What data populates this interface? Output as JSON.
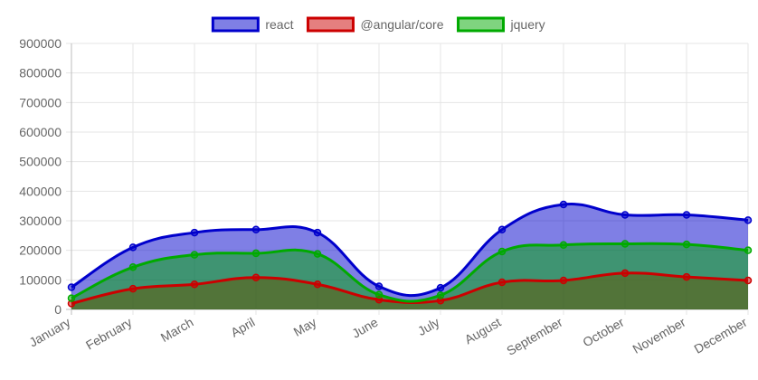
{
  "chart_data": {
    "type": "area",
    "categories": [
      "January",
      "February",
      "March",
      "April",
      "May",
      "June",
      "July",
      "August",
      "September",
      "October",
      "November",
      "December"
    ],
    "series": [
      {
        "name": "react",
        "values": [
          75000,
          210000,
          260000,
          270000,
          260000,
          78000,
          73000,
          270000,
          355000,
          320000,
          320000,
          302000
        ],
        "border_color": "#0000cc",
        "fill_color": "#0000cc",
        "fill_opacity": 0.5
      },
      {
        "name": "@angular/core",
        "values": [
          20000,
          70000,
          85000,
          108000,
          85000,
          33000,
          30000,
          92000,
          98000,
          123000,
          110000,
          98000
        ],
        "border_color": "#cc0000",
        "fill_color": "#cc0000",
        "fill_opacity": 0.5
      },
      {
        "name": "jquery",
        "values": [
          38000,
          143000,
          185000,
          190000,
          188000,
          50000,
          48000,
          196000,
          218000,
          222000,
          220000,
          200000
        ],
        "border_color": "#00aa00",
        "fill_color": "#00aa00",
        "fill_opacity": 0.5
      }
    ],
    "ylim": [
      0,
      900000
    ],
    "y_ticks": [
      0,
      100000,
      200000,
      300000,
      400000,
      500000,
      600000,
      700000,
      800000,
      900000
    ],
    "grid": true,
    "legend": "top-center",
    "title": "",
    "xlabel": "",
    "ylabel": ""
  }
}
